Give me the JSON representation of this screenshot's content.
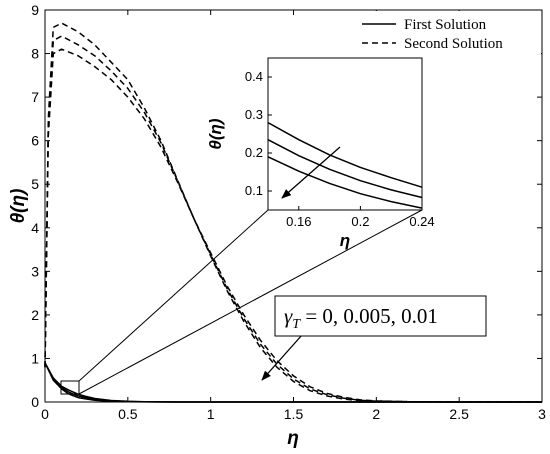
{
  "chart_data": {
    "type": "line",
    "xlabel": "η",
    "ylabel": "θ(η)",
    "xlim": [
      0,
      3
    ],
    "ylim": [
      0,
      9
    ],
    "x_ticks": [
      "0",
      "0.5",
      "1",
      "1.5",
      "2",
      "2.5",
      "3"
    ],
    "y_ticks": [
      "0",
      "1",
      "2",
      "3",
      "4",
      "5",
      "6",
      "7",
      "8",
      "9"
    ],
    "legend": {
      "position": "top-right",
      "entries": [
        {
          "label": "First Solution",
          "style": "solid"
        },
        {
          "label": "Second Solution",
          "style": "dashed"
        }
      ]
    },
    "annotation": "γ_T = 0, 0.005, 0.01",
    "annotation_parts": {
      "symbol": "γ",
      "subscript": "T",
      "rest": " = 0, 0.005, 0.01"
    },
    "series": [
      {
        "style": "dashed",
        "group": "second",
        "x": [
          0,
          0.02,
          0.05,
          0.1,
          0.2,
          0.3,
          0.4,
          0.5,
          0.6,
          0.7,
          0.8,
          0.9,
          1.0,
          1.1,
          1.2,
          1.3,
          1.4,
          1.5,
          1.6,
          1.7,
          1.8,
          1.9,
          2.0,
          2.2,
          2.5,
          3.0
        ],
        "y": [
          0.8,
          6.5,
          8.6,
          8.7,
          8.5,
          8.2,
          7.8,
          7.4,
          6.75,
          6.0,
          5.1,
          4.2,
          3.35,
          2.55,
          1.85,
          1.25,
          0.8,
          0.47,
          0.26,
          0.14,
          0.07,
          0.03,
          0.015,
          0.005,
          0.0,
          0.0
        ]
      },
      {
        "style": "dashed",
        "group": "second",
        "x": [
          0,
          0.02,
          0.05,
          0.1,
          0.2,
          0.3,
          0.4,
          0.5,
          0.6,
          0.7,
          0.8,
          0.9,
          1.0,
          1.1,
          1.2,
          1.3,
          1.4,
          1.5,
          1.6,
          1.7,
          1.8,
          1.9,
          2.0,
          2.2,
          2.5,
          3.0
        ],
        "y": [
          0.8,
          6.3,
          8.3,
          8.4,
          8.2,
          7.95,
          7.6,
          7.2,
          6.65,
          5.95,
          5.08,
          4.2,
          3.38,
          2.6,
          1.92,
          1.33,
          0.87,
          0.53,
          0.3,
          0.17,
          0.09,
          0.04,
          0.02,
          0.006,
          0.0,
          0.0
        ]
      },
      {
        "style": "dashed",
        "group": "second",
        "x": [
          0,
          0.02,
          0.05,
          0.1,
          0.2,
          0.3,
          0.4,
          0.5,
          0.6,
          0.7,
          0.8,
          0.9,
          1.0,
          1.1,
          1.2,
          1.3,
          1.4,
          1.5,
          1.6,
          1.7,
          1.8,
          1.9,
          2.0,
          2.2,
          2.5,
          3.0
        ],
        "y": [
          0.8,
          6.1,
          8.0,
          8.1,
          7.95,
          7.7,
          7.4,
          7.0,
          6.5,
          5.85,
          5.05,
          4.2,
          3.42,
          2.66,
          2.0,
          1.42,
          0.95,
          0.6,
          0.35,
          0.2,
          0.11,
          0.05,
          0.025,
          0.008,
          0.0,
          0.0
        ]
      },
      {
        "style": "solid",
        "group": "first",
        "x": [
          0,
          0.05,
          0.1,
          0.14,
          0.16,
          0.2,
          0.24,
          0.3,
          0.4,
          0.5,
          0.6,
          0.8,
          1.0,
          1.5,
          2.0,
          3.0
        ],
        "y": [
          0.9,
          0.55,
          0.36,
          0.28,
          0.245,
          0.18,
          0.135,
          0.08,
          0.035,
          0.015,
          0.006,
          0.001,
          0.0,
          0.0,
          0.0,
          0.0
        ]
      },
      {
        "style": "solid",
        "group": "first",
        "x": [
          0,
          0.05,
          0.1,
          0.14,
          0.16,
          0.2,
          0.24,
          0.3,
          0.4,
          0.5,
          0.6,
          0.8,
          1.0,
          1.5,
          2.0,
          3.0
        ],
        "y": [
          0.9,
          0.53,
          0.33,
          0.235,
          0.2,
          0.14,
          0.105,
          0.06,
          0.025,
          0.01,
          0.004,
          0.001,
          0.0,
          0.0,
          0.0,
          0.0
        ]
      },
      {
        "style": "solid",
        "group": "first",
        "x": [
          0,
          0.05,
          0.1,
          0.14,
          0.16,
          0.2,
          0.24,
          0.3,
          0.4,
          0.5,
          0.6,
          0.8,
          1.0,
          1.5,
          2.0,
          3.0
        ],
        "y": [
          0.9,
          0.5,
          0.3,
          0.19,
          0.16,
          0.1,
          0.075,
          0.04,
          0.015,
          0.006,
          0.002,
          0.0,
          0.0,
          0.0,
          0.0,
          0.0
        ]
      }
    ],
    "inset": {
      "xlabel": "η",
      "ylabel": "θ(η)",
      "xlim": [
        0.14,
        0.24
      ],
      "ylim": [
        0.05,
        0.45
      ],
      "x_ticks": [
        "0.16",
        "0.2",
        "0.24"
      ],
      "x_tick_values": [
        0.16,
        0.2,
        0.24
      ],
      "y_ticks": [
        "0.1",
        "0.2",
        "0.3",
        "0.4"
      ],
      "y_tick_values": [
        0.1,
        0.2,
        0.3,
        0.4
      ],
      "series": [
        {
          "x": [
            0.14,
            0.16,
            0.18,
            0.2,
            0.22,
            0.24
          ],
          "y": [
            0.28,
            0.235,
            0.195,
            0.162,
            0.135,
            0.11
          ]
        },
        {
          "x": [
            0.14,
            0.16,
            0.18,
            0.2,
            0.22,
            0.24
          ],
          "y": [
            0.235,
            0.193,
            0.157,
            0.127,
            0.103,
            0.083
          ]
        },
        {
          "x": [
            0.14,
            0.16,
            0.18,
            0.2,
            0.22,
            0.24
          ],
          "y": [
            0.19,
            0.152,
            0.12,
            0.093,
            0.072,
            0.055
          ]
        }
      ]
    }
  }
}
